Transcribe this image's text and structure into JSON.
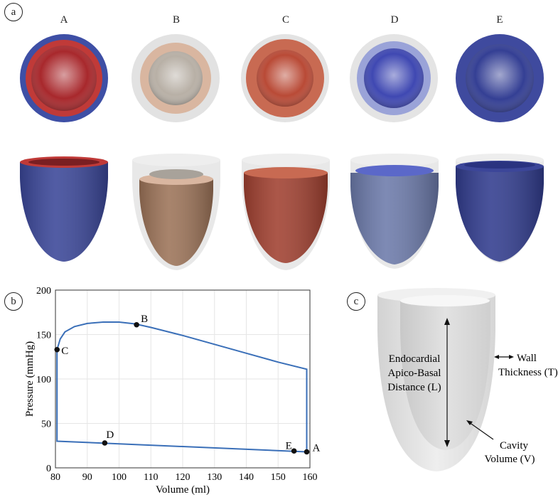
{
  "panels": {
    "a": "a",
    "b": "b",
    "c": "c"
  },
  "columns": [
    {
      "label": "A"
    },
    {
      "label": "B"
    },
    {
      "label": "C"
    },
    {
      "label": "D"
    },
    {
      "label": "E"
    }
  ],
  "colors": {
    "A": {
      "top_outer": "#3e4fa5",
      "top_inner": "#a8282c",
      "side": "#3a4698",
      "rim": "#c03a38"
    },
    "B": {
      "top_outer": "#e2e2e2",
      "top_inner": "#c9a38a",
      "side": "#9c7358",
      "rim": "#d9b6a0"
    },
    "C": {
      "top_outer": "#e3e3e3",
      "top_inner": "#b94a36",
      "side": "#a04030",
      "rim": "#c86a52"
    },
    "D": {
      "top_outer": "#e4e4e4",
      "top_inner": "#3f48b2",
      "side": "#6c7aaa",
      "rim": "#5b68c9"
    },
    "E": {
      "top_outer": "#3f4a9e",
      "top_inner": "#343f94",
      "side": "#313c8e",
      "rim": "#3c4699"
    },
    "curve": "#3a6fb8"
  },
  "chart_data": {
    "type": "line",
    "xlabel": "Volume (ml)",
    "ylabel": "Pressure (mmHg)",
    "xlim": [
      80,
      160
    ],
    "ylim": [
      0,
      200
    ],
    "xticks": [
      80,
      90,
      100,
      110,
      120,
      130,
      140,
      150,
      160
    ],
    "yticks": [
      0,
      50,
      100,
      150,
      200
    ],
    "grid": true,
    "series": [
      {
        "x": [
          159,
          80.5,
          80.5,
          81.5,
          83,
          86,
          90,
          95,
          100,
          105,
          110,
          120,
          130,
          140,
          150,
          159,
          159
        ],
        "y": [
          18,
          30,
          133,
          145,
          153,
          159,
          162.5,
          164,
          164,
          162,
          158,
          149,
          139,
          129,
          119,
          111,
          18
        ]
      }
    ],
    "points": [
      {
        "label": "A",
        "x": 159,
        "y": 18
      },
      {
        "label": "B",
        "x": 105.5,
        "y": 161
      },
      {
        "label": "C",
        "x": 80.5,
        "y": 133
      },
      {
        "label": "D",
        "x": 95.5,
        "y": 28
      },
      {
        "label": "E",
        "x": 155,
        "y": 19
      }
    ]
  },
  "diagram": {
    "label_l": [
      "Endocardial",
      "Apico-Basal",
      "Distance (L)"
    ],
    "label_t": [
      "Wall",
      "Thickness (T)"
    ],
    "label_v": [
      "Cavity",
      "Volume (V)"
    ]
  }
}
